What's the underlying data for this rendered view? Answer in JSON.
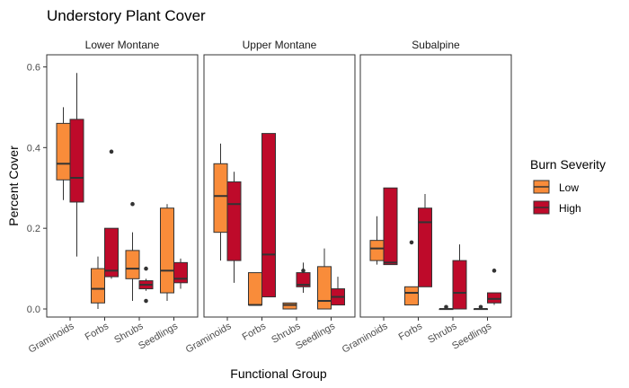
{
  "chart_data": {
    "type": "boxplot",
    "title": "Understory Plant Cover",
    "xlabel": "Functional Group",
    "ylabel": "Percent Cover",
    "ylim": [
      -0.02,
      0.63
    ],
    "yticks": [
      0.0,
      0.2,
      0.4,
      0.6
    ],
    "ytick_labels": [
      "0.0",
      "0.2",
      "0.4",
      "0.6"
    ],
    "grid": false,
    "categories": [
      "Graminoids",
      "Forbs",
      "Shrubs",
      "Seedlings"
    ],
    "legend": {
      "title": "Burn Severity",
      "position": "right",
      "entries": [
        {
          "name": "Low",
          "color": "#F98C3A"
        },
        {
          "name": "High",
          "color": "#BE0A2A"
        }
      ]
    },
    "panels": [
      {
        "name": "Lower Montane",
        "series": [
          {
            "name": "Low",
            "boxes": [
              {
                "min": 0.27,
                "q1": 0.32,
                "median": 0.36,
                "q3": 0.46,
                "max": 0.5,
                "outliers": []
              },
              {
                "min": 0.0,
                "q1": 0.015,
                "median": 0.05,
                "q3": 0.1,
                "max": 0.13,
                "outliers": []
              },
              {
                "min": 0.02,
                "q1": 0.075,
                "median": 0.1,
                "q3": 0.145,
                "max": 0.19,
                "outliers": [
                  0.26
                ]
              },
              {
                "min": 0.02,
                "q1": 0.04,
                "median": 0.095,
                "q3": 0.25,
                "max": 0.26,
                "outliers": []
              }
            ]
          },
          {
            "name": "High",
            "boxes": [
              {
                "min": 0.13,
                "q1": 0.265,
                "median": 0.325,
                "q3": 0.47,
                "max": 0.585,
                "outliers": []
              },
              {
                "min": 0.075,
                "q1": 0.08,
                "median": 0.095,
                "q3": 0.2,
                "max": 0.2,
                "outliers": [
                  0.39
                ]
              },
              {
                "min": 0.045,
                "q1": 0.05,
                "median": 0.06,
                "q3": 0.07,
                "max": 0.075,
                "outliers": [
                  0.1,
                  0.02
                ]
              },
              {
                "min": 0.05,
                "q1": 0.065,
                "median": 0.075,
                "q3": 0.115,
                "max": 0.125,
                "outliers": []
              }
            ]
          }
        ]
      },
      {
        "name": "Upper Montane",
        "series": [
          {
            "name": "Low",
            "boxes": [
              {
                "min": 0.12,
                "q1": 0.19,
                "median": 0.28,
                "q3": 0.36,
                "max": 0.41,
                "outliers": []
              },
              {
                "min": 0.01,
                "q1": 0.01,
                "median": 0.01,
                "q3": 0.09,
                "max": 0.09,
                "outliers": []
              },
              {
                "min": 0.0,
                "q1": 0.0,
                "median": 0.01,
                "q3": 0.015,
                "max": 0.015,
                "outliers": []
              },
              {
                "min": 0.0,
                "q1": 0.0,
                "median": 0.02,
                "q3": 0.105,
                "max": 0.15,
                "outliers": []
              }
            ]
          },
          {
            "name": "High",
            "boxes": [
              {
                "min": 0.065,
                "q1": 0.12,
                "median": 0.26,
                "q3": 0.315,
                "max": 0.34,
                "outliers": []
              },
              {
                "min": 0.03,
                "q1": 0.03,
                "median": 0.135,
                "q3": 0.435,
                "max": 0.435,
                "outliers": []
              },
              {
                "min": 0.04,
                "q1": 0.055,
                "median": 0.06,
                "q3": 0.09,
                "max": 0.115,
                "outliers": [
                  0.095
                ]
              },
              {
                "min": 0.01,
                "q1": 0.01,
                "median": 0.03,
                "q3": 0.05,
                "max": 0.08,
                "outliers": []
              }
            ]
          }
        ]
      },
      {
        "name": "Subalpine",
        "series": [
          {
            "name": "Low",
            "boxes": [
              {
                "min": 0.11,
                "q1": 0.12,
                "median": 0.15,
                "q3": 0.17,
                "max": 0.23,
                "outliers": []
              },
              {
                "min": 0.01,
                "q1": 0.01,
                "median": 0.04,
                "q3": 0.055,
                "max": 0.055,
                "outliers": [
                  0.165
                ]
              },
              {
                "min": 0.0,
                "q1": 0.0,
                "median": 0.0,
                "q3": 0.0,
                "max": 0.0,
                "outliers": [
                  0.005
                ]
              },
              {
                "min": 0.0,
                "q1": 0.0,
                "median": 0.0,
                "q3": 0.0,
                "max": 0.0,
                "outliers": [
                  0.005
                ]
              }
            ]
          },
          {
            "name": "High",
            "boxes": [
              {
                "min": 0.11,
                "q1": 0.11,
                "median": 0.115,
                "q3": 0.3,
                "max": 0.3,
                "outliers": []
              },
              {
                "min": 0.055,
                "q1": 0.055,
                "median": 0.215,
                "q3": 0.25,
                "max": 0.285,
                "outliers": []
              },
              {
                "min": 0.0,
                "q1": 0.0,
                "median": 0.04,
                "q3": 0.12,
                "max": 0.16,
                "outliers": []
              },
              {
                "min": 0.01,
                "q1": 0.015,
                "median": 0.025,
                "q3": 0.04,
                "max": 0.04,
                "outliers": [
                  0.095
                ]
              }
            ]
          }
        ]
      }
    ]
  }
}
